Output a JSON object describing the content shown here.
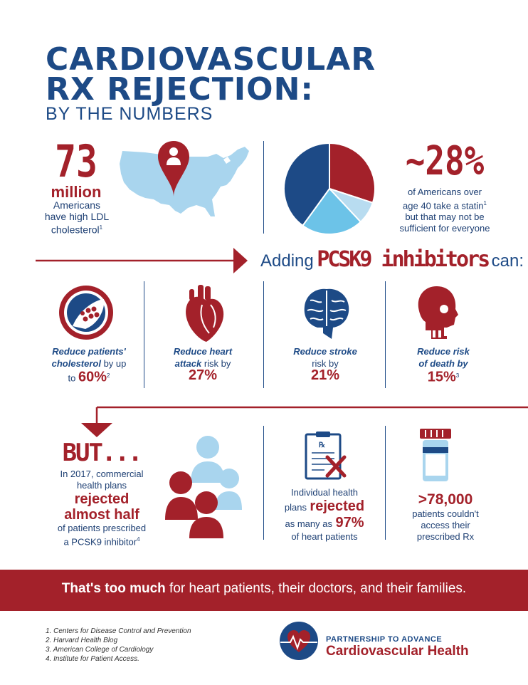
{
  "header": {
    "title_line1": "CARDIOVASCULAR",
    "title_line2": "RX REJECTION:",
    "subtitle": "BY THE NUMBERS"
  },
  "stat_ldl": {
    "number": "73",
    "unit": "million",
    "desc_line1": "Americans",
    "desc_line2": "have high LDL",
    "desc_line3": "cholesterol",
    "ref": "1"
  },
  "stat_statin": {
    "number": "~28%",
    "desc_line1": "of Americans over",
    "desc_line2": "age 40 take a statin",
    "desc_line3": "but that may not be",
    "desc_line4": "sufficient for everyone",
    "ref": "1"
  },
  "pie": {
    "slices": [
      {
        "name": "red",
        "value": 30,
        "color": "#a3212a"
      },
      {
        "name": "pale-blue",
        "value": 8,
        "color": "#b8dcf0"
      },
      {
        "name": "light-blue",
        "value": 22,
        "color": "#6cc3e8"
      },
      {
        "name": "dark-blue",
        "value": 40,
        "color": "#1d4a86"
      }
    ]
  },
  "adding": {
    "prefix": "Adding",
    "highlight": "PCSK9 inhibitors",
    "suffix": "can:"
  },
  "benefits": [
    {
      "line1_italic": "Reduce patients'",
      "line2_italic": "cholesterol",
      "line2_rest": " by up",
      "line3_pre": "to ",
      "value": "60%",
      "ref": "2"
    },
    {
      "line1_italic": "Reduce heart",
      "line2_italic": "attack",
      "line2_rest": " risk by",
      "line3_pre": "",
      "value": "27%",
      "ref": ""
    },
    {
      "line1_italic": "Reduce stroke",
      "line2_italic": "",
      "line2_rest": "risk by",
      "line3_pre": "",
      "value": "21%",
      "ref": ""
    },
    {
      "line1_italic": "Reduce risk",
      "line2_italic": "of death by",
      "line2_rest": "",
      "line3_pre": "",
      "value": "15%",
      "ref": "3"
    }
  ],
  "but": {
    "headline": "BUT...",
    "line1": "In 2017, commercial",
    "line2": "health plans",
    "emph1": "rejected",
    "emph2": "almost half",
    "line3": "of patients prescribed",
    "line4": "a PCSK9 inhibitor",
    "ref": "4"
  },
  "individual": {
    "line1": "Individual health",
    "line2_pre": "plans",
    "emph": "rejected",
    "line3_pre": "as many as",
    "value": "97%",
    "line4": "of heart patients"
  },
  "access": {
    "value": ">78,000",
    "line1": "patients couldn't",
    "line2": "access their",
    "line3": "prescribed Rx"
  },
  "banner": {
    "bold": "That's too much",
    "rest": " for heart patients, their doctors, and their families."
  },
  "footnotes": [
    "1. Centers for Disease Control and Prevention",
    "2. Harvard Health Blog",
    "3. American College of Cardiology",
    "4. Institute for Patient Access."
  ],
  "logo": {
    "line1": "PARTNERSHIP TO ADVANCE",
    "line2": "Cardiovascular Health"
  },
  "colors": {
    "navy": "#1d4a86",
    "red": "#a3212a",
    "light_blue": "#6cc3e8",
    "pale_blue": "#a9d5ee"
  }
}
